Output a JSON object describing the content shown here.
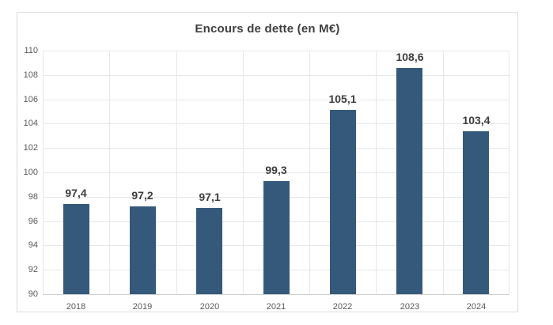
{
  "chart_data": {
    "type": "bar",
    "title": "Encours de dette (en M€)",
    "categories": [
      "2018",
      "2019",
      "2020",
      "2021",
      "2022",
      "2023",
      "2024"
    ],
    "values": [
      97.4,
      97.2,
      97.1,
      99.3,
      105.1,
      108.6,
      103.4
    ],
    "value_labels": [
      "97,4",
      "97,2",
      "97,1",
      "99,3",
      "105,1",
      "108,6",
      "103,4"
    ],
    "ylim": [
      90,
      110
    ],
    "ytick_step": 2,
    "ytick_labels": [
      "90",
      "92",
      "94",
      "96",
      "98",
      "100",
      "102",
      "104",
      "106",
      "108",
      "110"
    ],
    "xlabel": "",
    "ylabel": "",
    "grid": true,
    "legend": "none",
    "bar_color": "#35597b",
    "value_label_color": "#3d3d3d",
    "axis_tick_color": "#595959",
    "gridline_color": "#e7e7e7",
    "title_color": "#3f3f3f",
    "card_border_color": "#dcdcdc",
    "background_color": "#ffffff"
  }
}
